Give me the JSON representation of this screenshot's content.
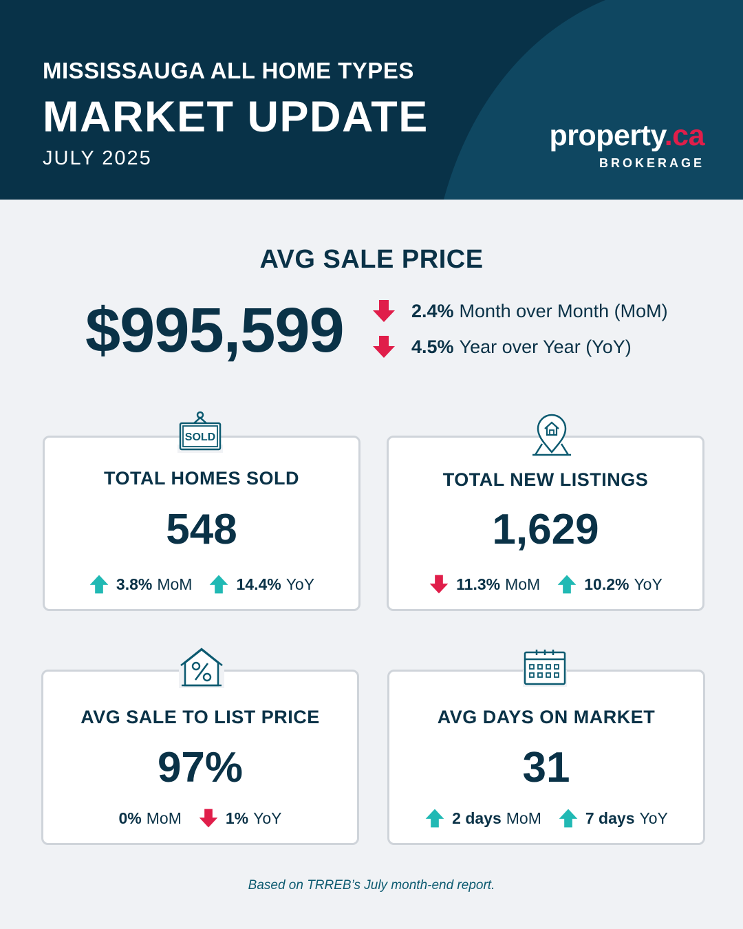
{
  "header": {
    "subtitle": "MISSISSAUGA ALL HOME TYPES",
    "title": "MARKET UPDATE",
    "date": "JULY 2025",
    "logo": {
      "main": "property",
      "accent": ".ca",
      "sub": "BROKERAGE"
    }
  },
  "avg_sale_price": {
    "heading": "AVG SALE PRICE",
    "value": "$995,599",
    "changes": [
      {
        "direction": "down",
        "percent": "2.4%",
        "label": "Month over Month (MoM)"
      },
      {
        "direction": "down",
        "percent": "4.5%",
        "label": "Year over Year (YoY)"
      }
    ]
  },
  "cards": {
    "homes_sold": {
      "icon": "sold-sign-icon",
      "title": "TOTAL HOMES SOLD",
      "value": "548",
      "mom": {
        "direction": "up",
        "value": "3.8%",
        "label": "MoM"
      },
      "yoy": {
        "direction": "up",
        "value": "14.4%",
        "label": "YoY"
      }
    },
    "new_listings": {
      "icon": "location-house-icon",
      "title": "TOTAL NEW LISTINGS",
      "value": "1,629",
      "mom": {
        "direction": "down",
        "value": "11.3%",
        "label": "MoM"
      },
      "yoy": {
        "direction": "up",
        "value": "10.2%",
        "label": "YoY"
      }
    },
    "sale_to_list": {
      "icon": "house-percent-icon",
      "title": "AVG SALE TO LIST PRICE",
      "value": "97%",
      "mom": {
        "direction": "none",
        "value": "0%",
        "label": "MoM"
      },
      "yoy": {
        "direction": "down",
        "value": "1%",
        "label": "YoY"
      }
    },
    "days_on_market": {
      "icon": "calendar-icon",
      "title": "AVG DAYS ON MARKET",
      "value": "31",
      "mom": {
        "direction": "up",
        "value": "2 days",
        "label": "MoM"
      },
      "yoy": {
        "direction": "up",
        "value": "7 days",
        "label": "YoY"
      }
    }
  },
  "colors": {
    "navy": "#083248",
    "accent_red": "#e01e4a",
    "teal_up": "#21b9b4",
    "card_border": "#cfd4da"
  },
  "footnote": "Based on TRREB’s July month-end report."
}
